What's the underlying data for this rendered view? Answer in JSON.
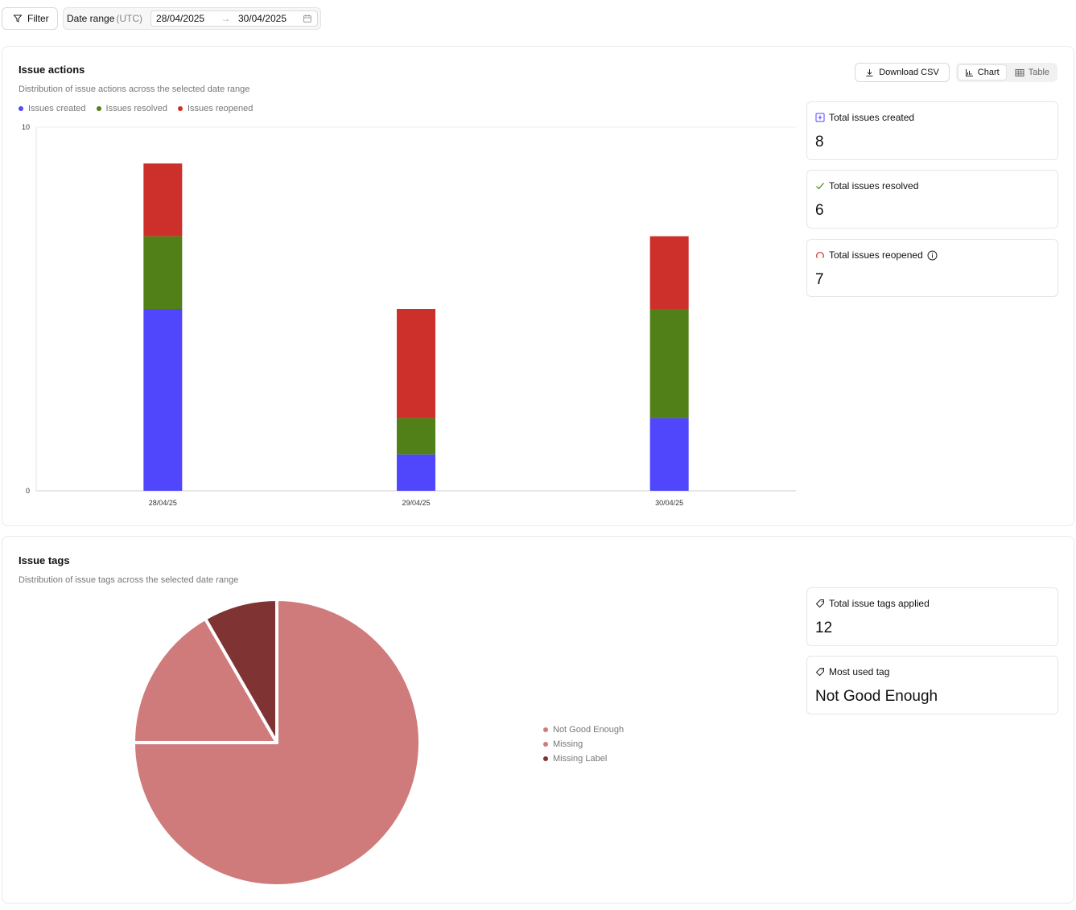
{
  "toolbar": {
    "filter_label": "Filter",
    "date_range_label": "Date range",
    "date_range_tz": "(UTC)",
    "date_from": "28/04/2025",
    "date_arrow": "→",
    "date_to": "30/04/2025"
  },
  "actions": {
    "title": "Issue actions",
    "subtitle": "Distribution of issue actions across the selected date range",
    "download_label": "Download CSV",
    "view_chart_label": "Chart",
    "view_table_label": "Table",
    "view_selected": "Chart",
    "legend": [
      {
        "label": "Issues created",
        "color": "#5046fb"
      },
      {
        "label": "Issues resolved",
        "color": "#518018"
      },
      {
        "label": "Issues reopened",
        "color": "#cd2f2b"
      }
    ],
    "stats": [
      {
        "label": "Total issues created",
        "value": "8",
        "icon": "plus-square-icon"
      },
      {
        "label": "Total issues resolved",
        "value": "6",
        "icon": "check-icon"
      },
      {
        "label": "Total issues reopened",
        "value": "7",
        "icon": "reopen-icon"
      }
    ]
  },
  "tags": {
    "title": "Issue tags",
    "subtitle": "Distribution of issue tags across the selected date range",
    "stats": [
      {
        "label": "Total issue tags applied",
        "value": "12",
        "icon": "tags-icon"
      },
      {
        "label": "Most used tag",
        "value": "Not Good Enough",
        "icon": "tag-icon"
      }
    ],
    "legend": [
      {
        "label": "Not Good Enough",
        "color": "#cf7b7b"
      },
      {
        "label": "Missing",
        "color": "#cf7b7b"
      },
      {
        "label": "Missing Label",
        "color": "#7f3333"
      }
    ]
  },
  "chart_data": [
    {
      "type": "bar",
      "stacked": true,
      "categories": [
        "28/04/25",
        "29/04/25",
        "30/04/25"
      ],
      "series": [
        {
          "name": "Issues created",
          "color": "#5046fb",
          "values": [
            5,
            1,
            2
          ]
        },
        {
          "name": "Issues resolved",
          "color": "#518018",
          "values": [
            2,
            1,
            3
          ]
        },
        {
          "name": "Issues reopened",
          "color": "#cd2f2b",
          "values": [
            2,
            3,
            2
          ]
        }
      ],
      "yticks": [
        "0",
        "10"
      ],
      "ylim": [
        0,
        10
      ],
      "grid": false,
      "legend_position": "top-left"
    },
    {
      "type": "pie",
      "labels": [
        "Not Good Enough",
        "Missing",
        "Missing Label"
      ],
      "values": [
        9,
        2,
        1
      ],
      "colors": [
        "#cf7b7b",
        "#cf7b7b",
        "#7f3333"
      ],
      "legend_position": "right"
    }
  ]
}
